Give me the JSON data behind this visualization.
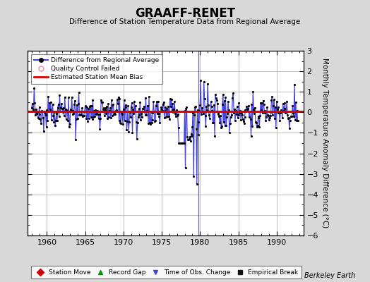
{
  "title": "GRAAFF-RENET",
  "subtitle": "Difference of Station Temperature Data from Regional Average",
  "ylabel": "Monthly Temperature Anomaly Difference (°C)",
  "xlim": [
    1957.5,
    1993.5
  ],
  "ylim": [
    -6,
    3
  ],
  "yticks": [
    -6,
    -5,
    -4,
    -3,
    -2,
    -1,
    0,
    1,
    2,
    3
  ],
  "xticks": [
    1960,
    1965,
    1970,
    1975,
    1980,
    1985,
    1990
  ],
  "bias_value": 0.04,
  "line_color": "#4444dd",
  "dot_color": "#000000",
  "bias_color": "#dd0000",
  "bg_color": "#d8d8d8",
  "plot_bg_color": "#ffffff",
  "grid_color": "#bbbbbb",
  "time_of_obs_change_x": 1979.75,
  "watermark": "Berkeley Earth",
  "legend2_entries": [
    {
      "label": "Station Move",
      "marker": "D",
      "color": "#cc0000"
    },
    {
      "label": "Record Gap",
      "marker": "^",
      "color": "#009900"
    },
    {
      "label": "Time of Obs. Change",
      "marker": "v",
      "color": "#4444dd"
    },
    {
      "label": "Empirical Break",
      "marker": "s",
      "color": "#111111"
    }
  ]
}
